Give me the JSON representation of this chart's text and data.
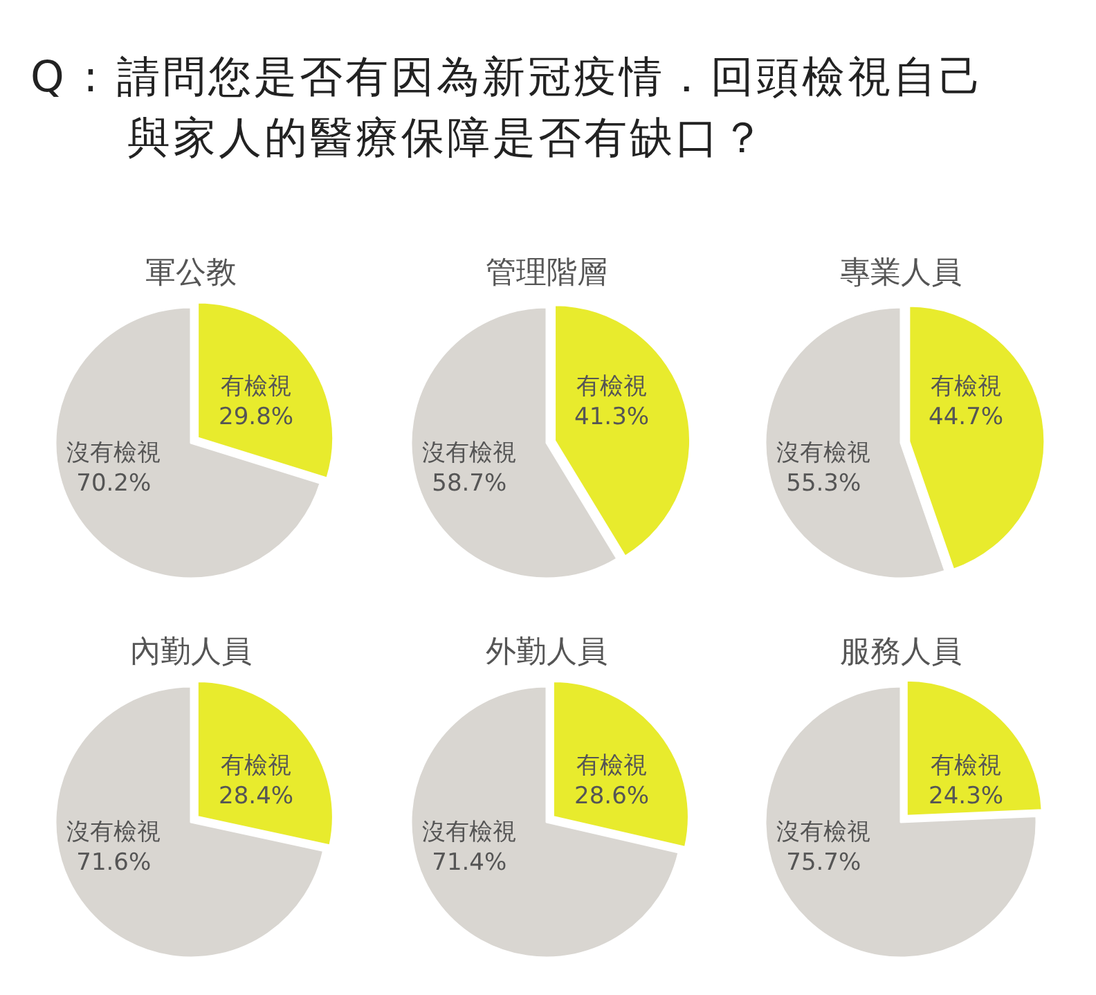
{
  "chart_data": [
    {
      "type": "other",
      "title": "Q : 請問您是否有因為新冠疫情．回頭檢視自己與家人的醫療保障是否有缺口？"
    },
    {
      "type": "pie",
      "title": "軍公教",
      "categories": [
        "有檢視",
        "沒有檢視"
      ],
      "values": [
        29.8,
        70.2
      ],
      "value_labels": [
        "29.8%",
        "70.2%"
      ],
      "colors": [
        "#e8eb2d",
        "#d9d6d1"
      ]
    },
    {
      "type": "pie",
      "title": "管理階層",
      "categories": [
        "有檢視",
        "沒有檢視"
      ],
      "values": [
        41.3,
        58.7
      ],
      "value_labels": [
        "41.3%",
        "58.7%"
      ],
      "colors": [
        "#e8eb2d",
        "#d9d6d1"
      ]
    },
    {
      "type": "pie",
      "title": "專業人員",
      "categories": [
        "有檢視",
        "沒有檢視"
      ],
      "values": [
        44.7,
        55.3
      ],
      "value_labels": [
        "44.7%",
        "55.3%"
      ],
      "colors": [
        "#e8eb2d",
        "#d9d6d1"
      ]
    },
    {
      "type": "pie",
      "title": "內勤人員",
      "categories": [
        "有檢視",
        "沒有檢視"
      ],
      "values": [
        28.4,
        71.6
      ],
      "value_labels": [
        "28.4%",
        "71.6%"
      ],
      "colors": [
        "#e8eb2d",
        "#d9d6d1"
      ]
    },
    {
      "type": "pie",
      "title": "外勤人員",
      "categories": [
        "有檢視",
        "沒有檢視"
      ],
      "values": [
        28.6,
        71.4
      ],
      "value_labels": [
        "28.6%",
        "71.4%"
      ],
      "colors": [
        "#e8eb2d",
        "#d9d6d1"
      ]
    },
    {
      "type": "pie",
      "title": "服務人員",
      "categories": [
        "有檢視",
        "沒有檢視"
      ],
      "values": [
        24.3,
        75.7
      ],
      "value_labels": [
        "24.3%",
        "75.7%"
      ],
      "colors": [
        "#e8eb2d",
        "#d9d6d1"
      ]
    }
  ]
}
